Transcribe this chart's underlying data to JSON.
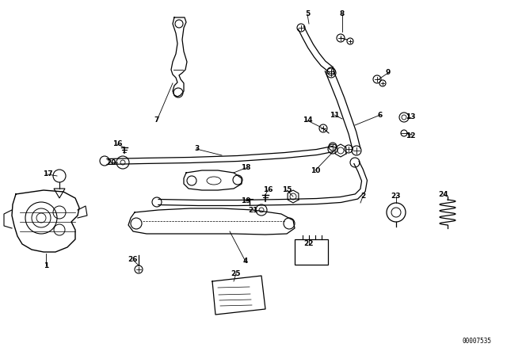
{
  "bg_color": "#ffffff",
  "part_number_text": "00007535",
  "fig_w": 6.4,
  "fig_h": 4.48,
  "dpi": 100
}
